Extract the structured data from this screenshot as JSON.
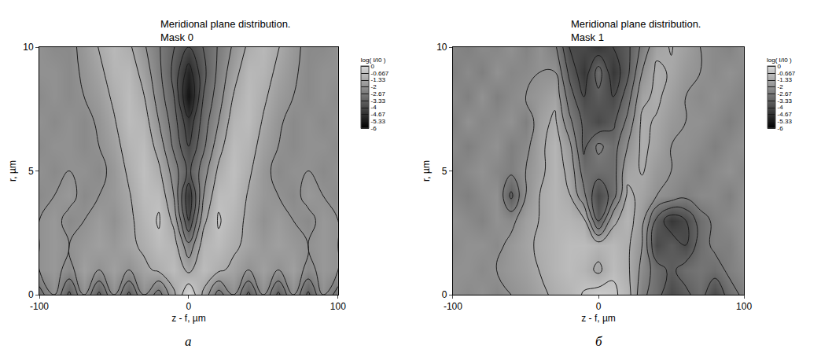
{
  "chart_data": [
    {
      "type": "contour",
      "title": [
        "Meridional plane distribution.",
        "Mask 0"
      ],
      "x_label": "z - f, µm",
      "y_label": "r, µm",
      "panel": "а",
      "xlim": [
        -100,
        100
      ],
      "ylim": [
        0,
        10
      ],
      "xticks": [
        -100,
        0,
        100
      ],
      "yticks": [
        0,
        5,
        10
      ],
      "grid": false,
      "x": [
        -100,
        -90,
        -80,
        -70,
        -60,
        -50,
        -40,
        -30,
        -20,
        -10,
        0,
        10,
        20,
        30,
        40,
        50,
        60,
        70,
        80,
        90,
        100
      ],
      "y": [
        0,
        1,
        2,
        3,
        4,
        5,
        6,
        7,
        8,
        9,
        10
      ],
      "z": [
        [
          -3,
          -2,
          -3.5,
          -2,
          -3.5,
          -2,
          -3.5,
          -2,
          -3,
          -1.5,
          0,
          -1.5,
          -3,
          -2,
          -3.5,
          -2,
          -3.5,
          -2,
          -3.5,
          -2,
          -3
        ],
        [
          -2,
          -1.8,
          -2.2,
          -1.6,
          -2,
          -1.6,
          -2,
          -1.5,
          -1.2,
          -0.8,
          -1.5,
          -0.8,
          -1.2,
          -1.5,
          -2,
          -1.6,
          -2,
          -1.6,
          -2.2,
          -1.8,
          -2
        ],
        [
          -2,
          -1.8,
          -2,
          -1.8,
          -1.6,
          -1.8,
          -1.5,
          -1.2,
          -0.8,
          -1,
          -2.5,
          -1,
          -0.8,
          -1.2,
          -1.5,
          -1.8,
          -1.6,
          -1.8,
          -2,
          -1.8,
          -2
        ],
        [
          -2,
          -1.8,
          -2.2,
          -2,
          -1.7,
          -2,
          -1.5,
          -1,
          -0.6,
          -1.5,
          -4,
          -1.5,
          -0.6,
          -1,
          -1.5,
          -2,
          -1.7,
          -2,
          -2.2,
          -1.8,
          -2
        ],
        [
          -2.2,
          -2,
          -1.8,
          -2.2,
          -2,
          -1.8,
          -1.4,
          -0.8,
          -0.8,
          -2,
          -4.5,
          -2,
          -0.8,
          -0.8,
          -1.4,
          -1.8,
          -2,
          -2.2,
          -1.8,
          -2,
          -2.2
        ],
        [
          -2,
          -2.2,
          -2,
          -2,
          -2.2,
          -1.8,
          -1.2,
          -0.7,
          -1.2,
          -2.3,
          -3.5,
          -2.3,
          -1.2,
          -0.7,
          -1.2,
          -1.8,
          -2.2,
          -2,
          -2,
          -2.2,
          -2
        ],
        [
          -2.2,
          -2,
          -2,
          -2.2,
          -2,
          -1.6,
          -1,
          -0.8,
          -1.6,
          -2.8,
          -4,
          -2.8,
          -1.6,
          -0.8,
          -1,
          -1.6,
          -2,
          -2.2,
          -2,
          -2,
          -2.2
        ],
        [
          -2,
          -2.2,
          -2,
          -2.2,
          -1.9,
          -1.4,
          -0.8,
          -1,
          -2,
          -3,
          -4.5,
          -3,
          -2,
          -1,
          -0.8,
          -1.4,
          -1.9,
          -2.2,
          -2,
          -2.2,
          -2
        ],
        [
          -2.2,
          -2,
          -2.2,
          -2,
          -1.7,
          -1.2,
          -0.8,
          -1.3,
          -2.3,
          -3.3,
          -5.5,
          -3.3,
          -2.3,
          -1.3,
          -0.8,
          -1.2,
          -1.7,
          -2,
          -2.2,
          -2,
          -2.2
        ],
        [
          -2,
          -2,
          -2.2,
          -1.9,
          -1.5,
          -1,
          -0.9,
          -1.6,
          -2.5,
          -3.5,
          -5,
          -3.5,
          -2.5,
          -1.6,
          -0.9,
          -1,
          -1.5,
          -1.9,
          -2.2,
          -2,
          -2
        ],
        [
          -2,
          -2.2,
          -2.2,
          -1.8,
          -1.3,
          -0.9,
          -1.2,
          -1.9,
          -2.6,
          -3.3,
          -4,
          -3.3,
          -2.6,
          -1.9,
          -1.2,
          -0.9,
          -1.3,
          -1.8,
          -2.2,
          -2.2,
          -2
        ]
      ],
      "colorbar": {
        "title": "log( I/I0 )",
        "range": [
          -6,
          0
        ],
        "ticks": [
          0,
          -0.667,
          -1.33,
          -2,
          -2.67,
          -3.33,
          -4,
          -4.67,
          -5.33,
          -6
        ]
      }
    },
    {
      "type": "contour",
      "title": [
        "Meridional plane distribution.",
        "Mask 1"
      ],
      "x_label": "z - f, µm",
      "y_label": "r, µm",
      "panel": "б",
      "xlim": [
        -100,
        100
      ],
      "ylim": [
        0,
        10
      ],
      "xticks": [
        -100,
        0,
        100
      ],
      "yticks": [
        0,
        5,
        10
      ],
      "grid": false,
      "x": [
        -100,
        -90,
        -80,
        -70,
        -60,
        -50,
        -40,
        -30,
        -20,
        -10,
        0,
        10,
        20,
        30,
        40,
        50,
        60,
        70,
        80,
        90,
        100
      ],
      "y": [
        0,
        1,
        2,
        3,
        4,
        5,
        6,
        7,
        8,
        9,
        10
      ],
      "z": [
        [
          -2,
          -2.2,
          -2,
          -2.3,
          -2,
          -1.8,
          -1.5,
          -1.2,
          -1,
          -0.6,
          -0.3,
          -0.5,
          -1,
          -2.5,
          -3,
          -4,
          -3.5,
          -3,
          -4,
          -3,
          -2.5
        ],
        [
          -2,
          -2,
          -2.2,
          -2,
          -1.8,
          -1.6,
          -1.3,
          -1,
          -0.8,
          -1,
          -1.5,
          -0.8,
          -1.2,
          -2.2,
          -3,
          -3.5,
          -3,
          -2.8,
          -3,
          -2.5,
          -2.2
        ],
        [
          -2.2,
          -2,
          -2,
          -2.2,
          -1.8,
          -1.5,
          -1.2,
          -1,
          -0.8,
          -0.8,
          -1,
          -0.9,
          -1.2,
          -2,
          -4,
          -3.5,
          -4,
          -3,
          -2.5,
          -2.5,
          -2
        ],
        [
          -2,
          -2.2,
          -2.4,
          -2,
          -2.2,
          -1.6,
          -1.3,
          -1,
          -1,
          -1.2,
          -3.5,
          -1.5,
          -1,
          -1.8,
          -3.5,
          -4.5,
          -4,
          -3,
          -2.5,
          -2.2,
          -2
        ],
        [
          -2.3,
          -2.5,
          -2.2,
          -2,
          -3.5,
          -2,
          -1.3,
          -1,
          -1.3,
          -2.5,
          -4,
          -3,
          -1.2,
          -1.5,
          -2,
          -2.2,
          -2.5,
          -2.2,
          -2.2,
          -2.5,
          -2
        ],
        [
          -2.5,
          -2.2,
          -2,
          -2.3,
          -2.5,
          -2,
          -1.5,
          -1,
          -1.5,
          -3,
          -3,
          -3,
          -1.5,
          -1.3,
          -1.8,
          -2,
          -2.2,
          -2.5,
          -2.2,
          -2,
          -2.3
        ],
        [
          -2.2,
          -2.5,
          -2.2,
          -2,
          -2.5,
          -2.2,
          -1.5,
          -1,
          -1.8,
          -3.5,
          -2.5,
          -3,
          -2,
          -1.2,
          -1.5,
          -2,
          -2,
          -2.2,
          -2.5,
          -2.2,
          -2
        ],
        [
          -2.5,
          -2,
          -2.3,
          -2.2,
          -2,
          -2.5,
          -1.6,
          -1.2,
          -2.5,
          -3.5,
          -4,
          -3.5,
          -2.5,
          -1.2,
          -1.4,
          -1.8,
          -2,
          -2,
          -2.2,
          -2.5,
          -2.2
        ],
        [
          -2.2,
          -2.5,
          -2,
          -2.5,
          -2.2,
          -2,
          -1.8,
          -1.5,
          -3,
          -4,
          -3.5,
          -4,
          -3,
          -1.5,
          -1.2,
          -1.6,
          -2,
          -2.2,
          -2,
          -2.2,
          -2.4
        ],
        [
          -2.5,
          -2.2,
          -2.5,
          -2,
          -2.3,
          -2.2,
          -2,
          -2,
          -3.5,
          -4.5,
          -3,
          -4.5,
          -3.5,
          -2,
          -1.2,
          -1.4,
          -1.8,
          -2,
          -2.2,
          -2,
          -2.2
        ],
        [
          -2.3,
          -2.5,
          -2.2,
          -2.3,
          -2,
          -2.4,
          -2,
          -2.5,
          -4,
          -4,
          -4.5,
          -4,
          -3.5,
          -2.5,
          -1.5,
          -1.3,
          -1.6,
          -2,
          -2.2,
          -2.4,
          -2
        ]
      ],
      "colorbar": {
        "title": "log( I/I0 )",
        "range": [
          -6,
          0
        ],
        "ticks": [
          0,
          -0.667,
          -1.33,
          -2,
          -2.67,
          -3.33,
          -4,
          -4.67,
          -5.33,
          -6
        ]
      }
    }
  ]
}
